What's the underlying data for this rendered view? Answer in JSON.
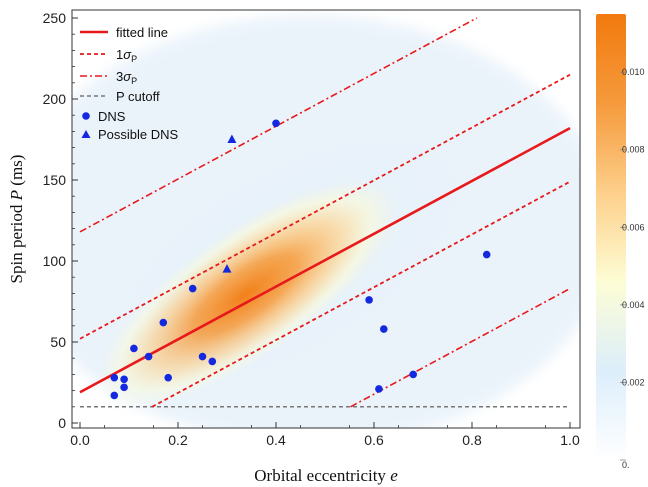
{
  "chart_data": {
    "type": "scatter",
    "xlabel_main": "Orbital eccentricity ",
    "xlabel_var": "e",
    "ylabel_main": "Spin period ",
    "ylabel_var": "P",
    "ylabel_unit": " (ms)",
    "xlim": [
      0.0,
      1.0
    ],
    "ylim": [
      0,
      250
    ],
    "x_ticks": [
      "0.0",
      "0.2",
      "0.4",
      "0.6",
      "0.8",
      "1.0"
    ],
    "y_ticks": [
      "0",
      "50",
      "100",
      "150",
      "200",
      "250"
    ],
    "grid": false,
    "legend_position": "top-left",
    "legend": {
      "fitted": "fitted line",
      "sigma1_main": "1",
      "sigma1_greek": "σ",
      "sigma1_sub": "P",
      "sigma3_main": "3",
      "sigma3_greek": "σ",
      "sigma3_sub": "P",
      "cutoff": "P cutoff",
      "dns": "DNS",
      "possible": "Possible DNS"
    },
    "lines": {
      "fitted": {
        "intercept": 19,
        "slope": 163,
        "color": "#e8191b"
      },
      "sigma1_upper": {
        "intercept": 52,
        "slope": 163
      },
      "sigma1_lower": {
        "intercept": -14,
        "slope": 163
      },
      "sigma3_upper": {
        "intercept": 118,
        "slope": 163
      },
      "sigma3_lower": {
        "intercept": -80,
        "slope": 163
      },
      "p_cutoff": 10
    },
    "density_colorbar": {
      "ticks": [
        "0.",
        "0.002",
        "0.004",
        "0.006",
        "0.008",
        "0.010"
      ],
      "tick_values": [
        0,
        0.002,
        0.004,
        0.006,
        0.008,
        0.01
      ],
      "max": 0.0115,
      "colors": [
        "#ffffff",
        "#dceefb",
        "#fdfdd5",
        "#fdcf8a",
        "#f59a3c",
        "#f27a0e"
      ]
    },
    "series": [
      {
        "name": "DNS",
        "marker": "circle",
        "color": "#1428e0",
        "points": [
          [
            0.4,
            185
          ],
          [
            0.83,
            104
          ],
          [
            0.23,
            83
          ],
          [
            0.59,
            76
          ],
          [
            0.17,
            62
          ],
          [
            0.62,
            58
          ],
          [
            0.11,
            46
          ],
          [
            0.14,
            41
          ],
          [
            0.25,
            41
          ],
          [
            0.27,
            38
          ],
          [
            0.07,
            28
          ],
          [
            0.18,
            28
          ],
          [
            0.09,
            27
          ],
          [
            0.68,
            30
          ],
          [
            0.09,
            22
          ],
          [
            0.61,
            21
          ],
          [
            0.07,
            17
          ]
        ]
      },
      {
        "name": "Possible DNS",
        "marker": "triangle",
        "color": "#1428e0",
        "points": [
          [
            0.31,
            175
          ],
          [
            0.3,
            95
          ]
        ]
      }
    ]
  }
}
